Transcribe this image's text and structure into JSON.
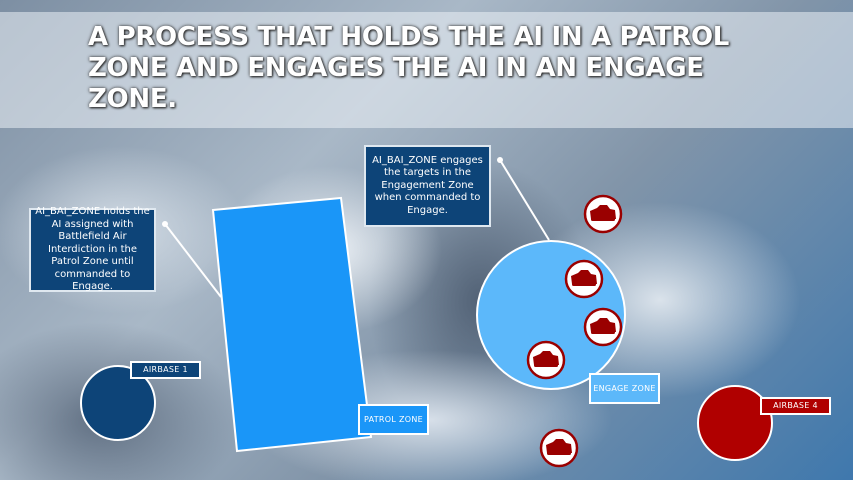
{
  "title": "A PROCESS THAT HOLDS THE AI IN A PATROL ZONE AND ENGAGES THE AI IN AN ENGAGE ZONE.",
  "notes": {
    "patrol": "AI_BAI_ZONE holds the AI assigned with Battlefield Air Interdiction in the Patrol Zone until commanded to Engage.",
    "engage": "AI_BAI_ZONE engages the targets in the Engagement Zone when commanded to Engage."
  },
  "labels": {
    "airbase1": "AIRBASE 1",
    "patrol_zone": "PATROL ZONE",
    "engage_zone": "ENGAGE ZONE",
    "airbase4": "AIRBASE 4"
  },
  "colors": {
    "patrol": "#1a96f8",
    "engage": "#5cb8fa",
    "blue_base": "#0d4478",
    "red_base": "#b00000",
    "note_bg": "#0d4478"
  },
  "icons": [
    "tank-icon",
    "tank-icon",
    "tank-icon",
    "tank-icon",
    "tank-icon"
  ]
}
